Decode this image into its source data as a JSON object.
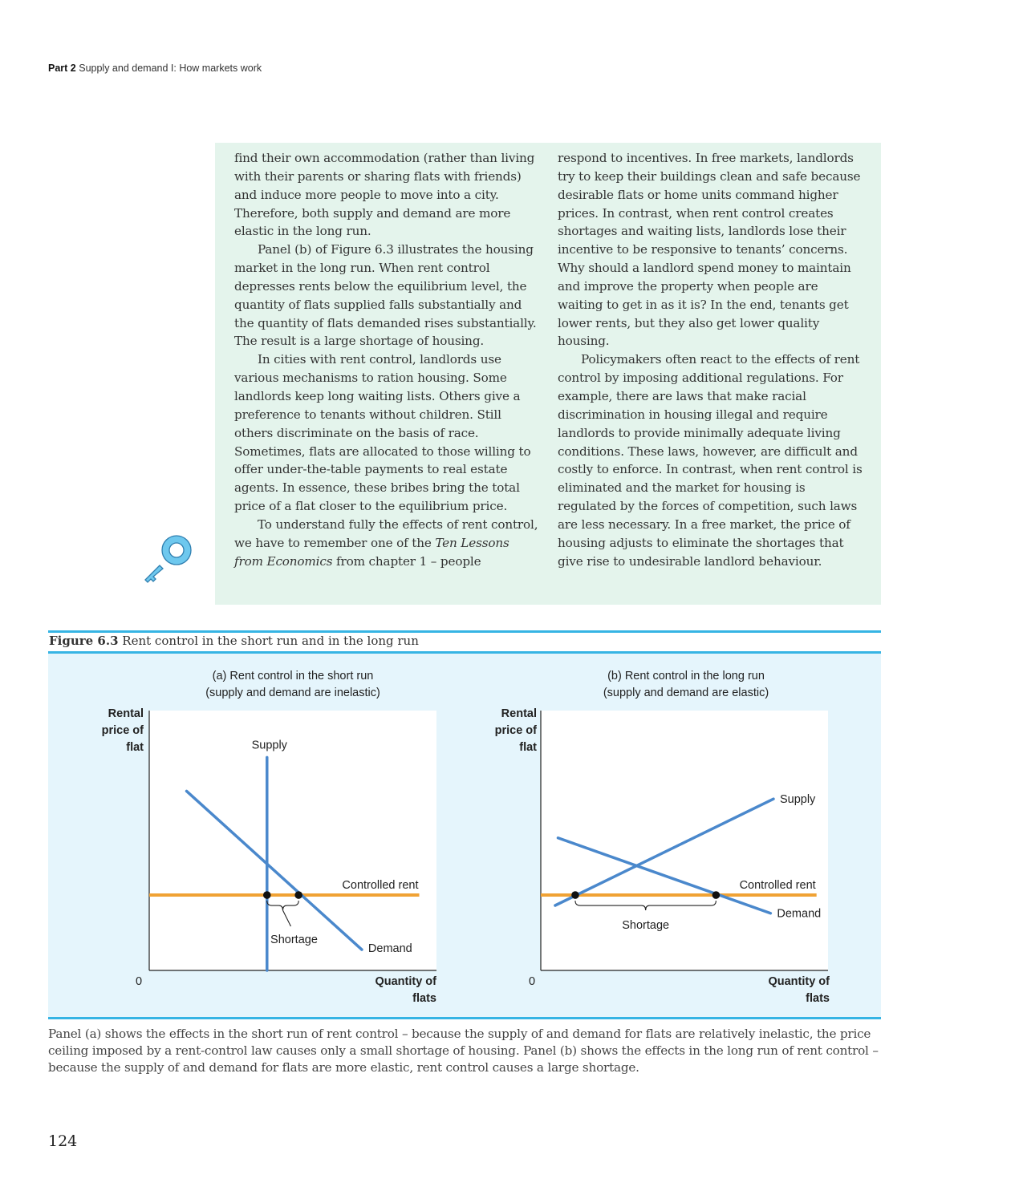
{
  "running_head": {
    "part": "Part 2",
    "title": "Supply and demand I: How markets work"
  },
  "left_column": {
    "p1": "find their own accommodation (rather than living with their parents or sharing flats with friends) and induce more people to move into a city. Therefore, both supply and demand are more elastic in the long run.",
    "p2": "Panel (b) of Figure 6.3 illustrates the housing market in the long run. When rent control depresses rents below the equilibrium level, the quantity of flats supplied falls substantially and the quantity of flats demanded rises substantially. The result is a large shortage of housing.",
    "p3": "In cities with rent control, landlords use various mechanisms to ration housing. Some landlords keep long waiting lists. Others give a preference to tenants without children. Still others discriminate on the basis of race. Sometimes, flats are allocated to those willing to offer under-the-table payments to real estate agents. In essence, these bribes bring the total price of a flat closer to the equilibrium price.",
    "p4_a": "To understand fully the effects of rent control, we have to remember one of the ",
    "p4_italic": "Ten Lessons from Economics",
    "p4_b": " from chapter 1 – people"
  },
  "right_column": {
    "p1": "respond to incentives. In free markets, landlords try to keep their buildings clean and safe because desirable flats or home units command higher prices. In contrast, when rent control creates shortages and waiting lists, landlords lose their incentive to be responsive to tenants’ concerns. Why should a landlord spend money to maintain and improve the property when people are waiting to get in as it is? In the end, tenants get lower rents, but they also get lower quality housing.",
    "p2": "Policymakers often react to the effects of rent control by imposing additional regulations. For example, there are laws that make racial discrimination in housing illegal and require landlords to provide minimally adequate living conditions. These laws, however, are difficult and costly to enforce. In contrast, when rent control is eliminated and the market for housing is regulated by the forces of competition, such laws are less necessary. In a free market, the price of housing adjusts to eliminate the shortages that give rise to undesirable landlord behaviour."
  },
  "icons": {
    "key": "key-icon"
  },
  "figure": {
    "label": "Figure 6.3",
    "title": "Rent control in the short run and in the long run",
    "note": "Panel (a) shows the effects in the short run of rent control – because the supply of and demand for flats are relatively inelastic, the price ceiling imposed by a rent-control law causes only a small shortage of housing. Panel (b) shows the effects in the long run of rent control – because the supply of and demand for flats are more elastic, rent control causes a large shortage."
  },
  "colors": {
    "curve": "#4a88cc",
    "controlled_rent": "#f0a234",
    "figure_rule": "#36b4e4",
    "figure_bg": "#e5f5fc",
    "text_box_bg": "#e4f4ec"
  },
  "chart_data": [
    {
      "type": "line",
      "title_line1": "(a) Rent control in the short run",
      "title_line2": "(supply and demand are inelastic)",
      "ylabel_lines": [
        "Rental",
        "price of",
        "flat"
      ],
      "xlabel_lines": [
        "Quantity of",
        "flats"
      ],
      "origin": "0",
      "xlim": [
        0,
        100
      ],
      "ylim": [
        0,
        100
      ],
      "series": [
        {
          "name": "Supply",
          "x": [
            41,
            41
          ],
          "y": [
            0,
            82
          ]
        },
        {
          "name": "Demand",
          "x": [
            13,
            74
          ],
          "y": [
            69,
            8
          ]
        }
      ],
      "controlled_rent": {
        "label": "Controlled rent",
        "y": 29,
        "x": [
          0,
          94
        ]
      },
      "points": [
        {
          "x": 41,
          "y": 29
        },
        {
          "x": 52,
          "y": 29
        }
      ],
      "annotation": {
        "label": "Shortage",
        "from_x": 41,
        "to_x": 52
      }
    },
    {
      "type": "line",
      "title_line1": "(b) Rent control in the long run",
      "title_line2": "(supply and demand are elastic)",
      "ylabel_lines": [
        "Rental",
        "price of",
        "flat"
      ],
      "xlabel_lines": [
        "Quantity of",
        "flats"
      ],
      "origin": "0",
      "xlim": [
        0,
        100
      ],
      "ylim": [
        0,
        100
      ],
      "series": [
        {
          "name": "Supply",
          "x": [
            5,
            81
          ],
          "y": [
            25,
            66
          ]
        },
        {
          "name": "Demand",
          "x": [
            6,
            80
          ],
          "y": [
            51,
            22
          ]
        }
      ],
      "controlled_rent": {
        "label": "Controlled rent",
        "y": 29,
        "x": [
          0,
          96
        ]
      },
      "points": [
        {
          "x": 12,
          "y": 29
        },
        {
          "x": 61,
          "y": 29
        }
      ],
      "annotation": {
        "label": "Shortage",
        "from_x": 12,
        "to_x": 61
      }
    }
  ],
  "page_number": "124"
}
